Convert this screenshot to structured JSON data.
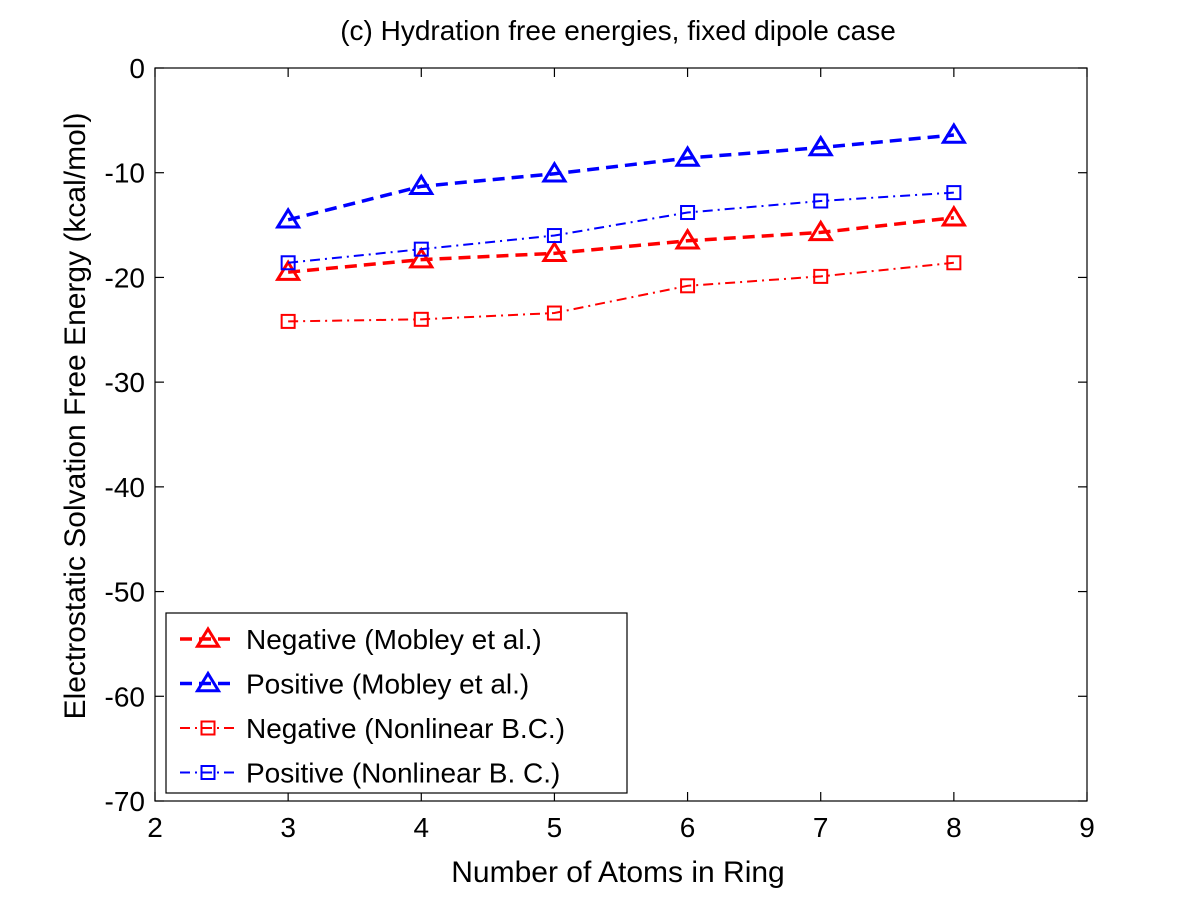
{
  "chart_data": {
    "type": "line",
    "title": "(c) Hydration free energies, fixed dipole case",
    "xlabel": "Number of Atoms in Ring",
    "ylabel": "Electrostatic Solvation Free Energy (kcal/mol)",
    "xlim": [
      2,
      9
    ],
    "ylim": [
      -70,
      0
    ],
    "xticks": [
      2,
      3,
      4,
      5,
      6,
      7,
      8,
      9
    ],
    "yticks": [
      0,
      -10,
      -20,
      -30,
      -40,
      -50,
      -60,
      -70
    ],
    "xtick_labels": [
      "2",
      "3",
      "4",
      "5",
      "6",
      "7",
      "8",
      "9"
    ],
    "ytick_labels": [
      "0",
      "-10",
      "-20",
      "-30",
      "-40",
      "-50",
      "-60",
      "-70"
    ],
    "grid": false,
    "legend_position": "bottom-left",
    "x": [
      3,
      4,
      5,
      6,
      7,
      8
    ],
    "series": [
      {
        "name": "Negative (Mobley et al.)",
        "color": "#ff0000",
        "line": "dashed",
        "marker": "triangle",
        "values": [
          -19.5,
          -18.3,
          -17.7,
          -16.5,
          -15.7,
          -14.3
        ]
      },
      {
        "name": "Positive (Mobley et al.)",
        "color": "#0000ff",
        "line": "dashed",
        "marker": "triangle",
        "values": [
          -14.5,
          -11.3,
          -10.1,
          -8.6,
          -7.6,
          -6.4
        ]
      },
      {
        "name": "Negative (Nonlinear B.C.)",
        "color": "#ff0000",
        "line": "dashdot",
        "marker": "square",
        "values": [
          -24.2,
          -24.0,
          -23.4,
          -20.8,
          -19.9,
          -18.6
        ]
      },
      {
        "name": "Positive (Nonlinear B. C.)",
        "color": "#0000ff",
        "line": "dashdot",
        "marker": "square",
        "values": [
          -18.6,
          -17.3,
          -16.0,
          -13.8,
          -12.7,
          -11.9
        ]
      }
    ]
  }
}
